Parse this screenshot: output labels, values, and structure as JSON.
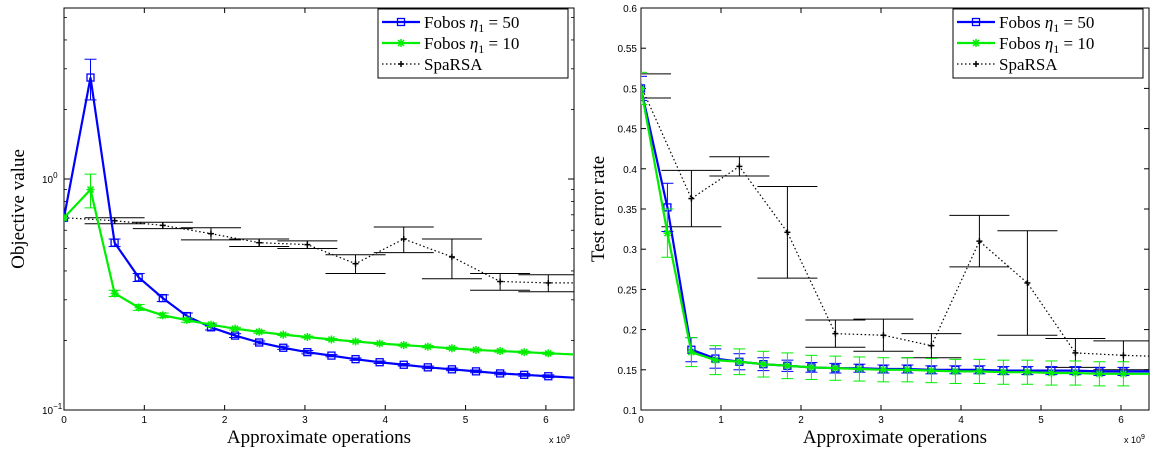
{
  "chart_data": [
    {
      "type": "line",
      "title": "",
      "xlabel": "Approximate operations",
      "ylabel": "Objective value",
      "x_multiplier": "x 10",
      "x_multiplier_exp": "9",
      "xlim": [
        0,
        6.35
      ],
      "ylim": [
        0.1,
        5.5
      ],
      "yscale": "log",
      "xticks": [
        0,
        1,
        2,
        3,
        4,
        5,
        6
      ],
      "yticks": [
        {
          "value": 0.1,
          "base": "10",
          "exp": "−1"
        },
        {
          "value": 1,
          "base": "10",
          "exp": "0"
        }
      ],
      "legend": "top-right",
      "series": [
        {
          "name_prefix": "Fobos ",
          "name_math": "η",
          "name_sub": "1",
          "name_suffix": " = 50",
          "color": "#0000ff",
          "marker": "square",
          "style": "solid",
          "x": [
            0,
            0.33,
            0.63,
            0.93,
            1.23,
            1.53,
            1.83,
            2.13,
            2.43,
            2.73,
            3.03,
            3.33,
            3.63,
            3.93,
            4.23,
            4.53,
            4.83,
            5.13,
            5.43,
            5.73,
            6.03,
            6.35
          ],
          "y": [
            0.68,
            2.75,
            0.53,
            0.375,
            0.305,
            0.255,
            0.228,
            0.21,
            0.196,
            0.186,
            0.178,
            0.172,
            0.166,
            0.161,
            0.157,
            0.153,
            0.15,
            0.147,
            0.144,
            0.142,
            0.14,
            0.138
          ],
          "err": [
            0,
            0.55,
            0.02,
            0.015,
            0.01,
            0.008,
            0.006,
            0.004,
            0.003,
            0.003,
            0.003,
            0.002,
            0.002,
            0.002,
            0.002,
            0.002,
            0.002,
            0.002,
            0.002,
            0.002,
            0.002,
            0
          ]
        },
        {
          "name_prefix": "Fobos ",
          "name_math": "η",
          "name_sub": "1",
          "name_suffix": " = 10",
          "color": "#00ee00",
          "marker": "star",
          "style": "solid",
          "x": [
            0,
            0.33,
            0.63,
            0.93,
            1.23,
            1.53,
            1.83,
            2.13,
            2.43,
            2.73,
            3.03,
            3.33,
            3.63,
            3.93,
            4.23,
            4.53,
            4.83,
            5.13,
            5.43,
            5.73,
            6.03,
            6.35
          ],
          "y": [
            0.68,
            0.9,
            0.32,
            0.278,
            0.257,
            0.245,
            0.234,
            0.225,
            0.218,
            0.212,
            0.207,
            0.202,
            0.198,
            0.194,
            0.191,
            0.188,
            0.185,
            0.182,
            0.18,
            0.178,
            0.176,
            0.174
          ],
          "err": [
            0,
            0.15,
            0.01,
            0.008,
            0.006,
            0.005,
            0.004,
            0.003,
            0.003,
            0.002,
            0.002,
            0.002,
            0.002,
            0.002,
            0.002,
            0.002,
            0.002,
            0.002,
            0.002,
            0.002,
            0.002,
            0
          ]
        },
        {
          "name_prefix": "SpaRSA",
          "name_math": "",
          "name_sub": "",
          "name_suffix": "",
          "color": "#000000",
          "marker": "plus",
          "style": "dotted",
          "x": [
            0,
            0.63,
            1.23,
            1.83,
            2.43,
            3.03,
            3.63,
            4.23,
            4.83,
            5.43,
            6.03,
            6.35
          ],
          "y": [
            0.68,
            0.66,
            0.63,
            0.58,
            0.53,
            0.52,
            0.43,
            0.55,
            0.46,
            0.36,
            0.355,
            0.355
          ],
          "err": [
            0,
            0.02,
            0.02,
            0.035,
            0.02,
            0.02,
            0.04,
            0.07,
            0.09,
            0.03,
            0.03,
            0
          ]
        }
      ]
    },
    {
      "type": "line",
      "title": "",
      "xlabel": "Approximate operations",
      "ylabel": "Test error rate",
      "x_multiplier": "x 10",
      "x_multiplier_exp": "9",
      "xlim": [
        0,
        6.35
      ],
      "ylim": [
        0.1,
        0.6
      ],
      "yscale": "linear",
      "xticks": [
        0,
        1,
        2,
        3,
        4,
        5,
        6
      ],
      "yticks": [
        0.1,
        0.15,
        0.2,
        0.25,
        0.3,
        0.35,
        0.4,
        0.45,
        0.5,
        0.55,
        0.6
      ],
      "ytick_labels": [
        "0.1",
        "0.15",
        "0.2",
        "0.25",
        "0.3",
        "0.35",
        "0.4",
        "0.45",
        "0.5",
        "0.55",
        "0.6"
      ],
      "legend": "top-right",
      "series": [
        {
          "name_prefix": "Fobos ",
          "name_math": "η",
          "name_sub": "1",
          "name_suffix": " = 50",
          "color": "#0000ff",
          "marker": "square",
          "style": "solid",
          "x": [
            0,
            0.33,
            0.63,
            0.93,
            1.23,
            1.53,
            1.83,
            2.13,
            2.43,
            2.73,
            3.03,
            3.33,
            3.63,
            3.93,
            4.23,
            4.53,
            4.83,
            5.13,
            5.43,
            5.73,
            6.03,
            6.35
          ],
          "y": [
            0.5,
            0.352,
            0.175,
            0.164,
            0.16,
            0.157,
            0.155,
            0.153,
            0.152,
            0.152,
            0.151,
            0.151,
            0.15,
            0.15,
            0.15,
            0.149,
            0.149,
            0.149,
            0.149,
            0.148,
            0.148,
            0.148
          ],
          "err": [
            0.015,
            0.03,
            0.015,
            0.012,
            0.01,
            0.008,
            0.007,
            0.006,
            0.006,
            0.005,
            0.005,
            0.005,
            0.005,
            0.005,
            0.005,
            0.005,
            0.005,
            0.005,
            0.005,
            0.005,
            0.005,
            0
          ]
        },
        {
          "name_prefix": "Fobos ",
          "name_math": "η",
          "name_sub": "1",
          "name_suffix": " = 10",
          "color": "#00ee00",
          "marker": "star",
          "style": "solid",
          "x": [
            0,
            0.33,
            0.63,
            0.93,
            1.23,
            1.53,
            1.83,
            2.13,
            2.43,
            2.73,
            3.03,
            3.33,
            3.63,
            3.93,
            4.23,
            4.53,
            4.83,
            5.13,
            5.43,
            5.73,
            6.03,
            6.35
          ],
          "y": [
            0.5,
            0.32,
            0.172,
            0.162,
            0.16,
            0.157,
            0.155,
            0.153,
            0.152,
            0.151,
            0.15,
            0.15,
            0.149,
            0.148,
            0.148,
            0.147,
            0.147,
            0.146,
            0.146,
            0.145,
            0.145,
            0.145
          ],
          "err": [
            0.02,
            0.03,
            0.018,
            0.018,
            0.016,
            0.016,
            0.016,
            0.015,
            0.015,
            0.015,
            0.015,
            0.015,
            0.015,
            0.015,
            0.015,
            0.015,
            0.015,
            0.015,
            0.015,
            0.015,
            0.015,
            0
          ]
        },
        {
          "name_prefix": "SpaRSA",
          "name_math": "",
          "name_sub": "",
          "name_suffix": "",
          "color": "#000000",
          "marker": "plus",
          "style": "dotted",
          "x": [
            0,
            0.63,
            1.23,
            1.83,
            2.43,
            3.03,
            3.63,
            4.23,
            4.83,
            5.43,
            6.03,
            6.35
          ],
          "y": [
            0.503,
            0.363,
            0.403,
            0.321,
            0.195,
            0.193,
            0.18,
            0.31,
            0.258,
            0.171,
            0.168,
            0.167
          ],
          "err": [
            0.015,
            0.035,
            0.012,
            0.057,
            0.017,
            0.02,
            0.015,
            0.032,
            0.065,
            0.018,
            0.018,
            0
          ]
        }
      ]
    }
  ]
}
